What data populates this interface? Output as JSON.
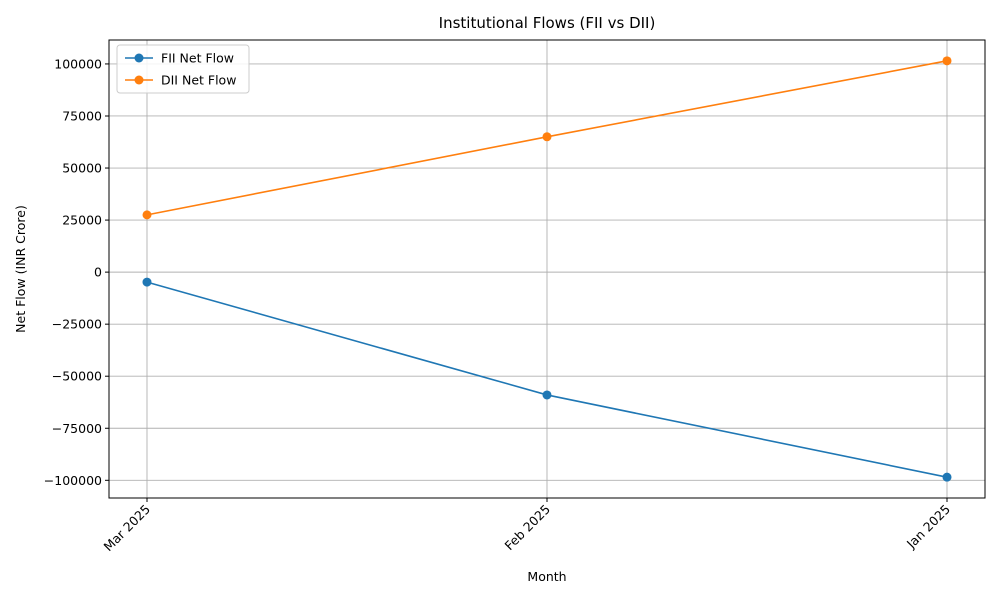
{
  "chart_data": {
    "type": "line",
    "title": "Institutional Flows (FII vs DII)",
    "xlabel": "Month",
    "ylabel": "Net Flow (INR Crore)",
    "categories": [
      "Mar 2025",
      "Feb 2025",
      "Jan 2025"
    ],
    "series": [
      {
        "name": "FII Net Flow",
        "color": "#1f77b4",
        "values": [
          -4800,
          -59000,
          -98500
        ]
      },
      {
        "name": "DII Net Flow",
        "color": "#ff7f0e",
        "values": [
          27500,
          65000,
          101500
        ]
      }
    ],
    "ylim": [
      -108500,
      111500
    ],
    "yticks": [
      -100000,
      -75000,
      -50000,
      -25000,
      0,
      25000,
      50000,
      75000,
      100000
    ],
    "ytick_labels": [
      "−100000",
      "−75000",
      "−50000",
      "−25000",
      "0",
      "25000",
      "50000",
      "75000",
      "100000"
    ],
    "grid": true,
    "legend_position": "top-left"
  }
}
